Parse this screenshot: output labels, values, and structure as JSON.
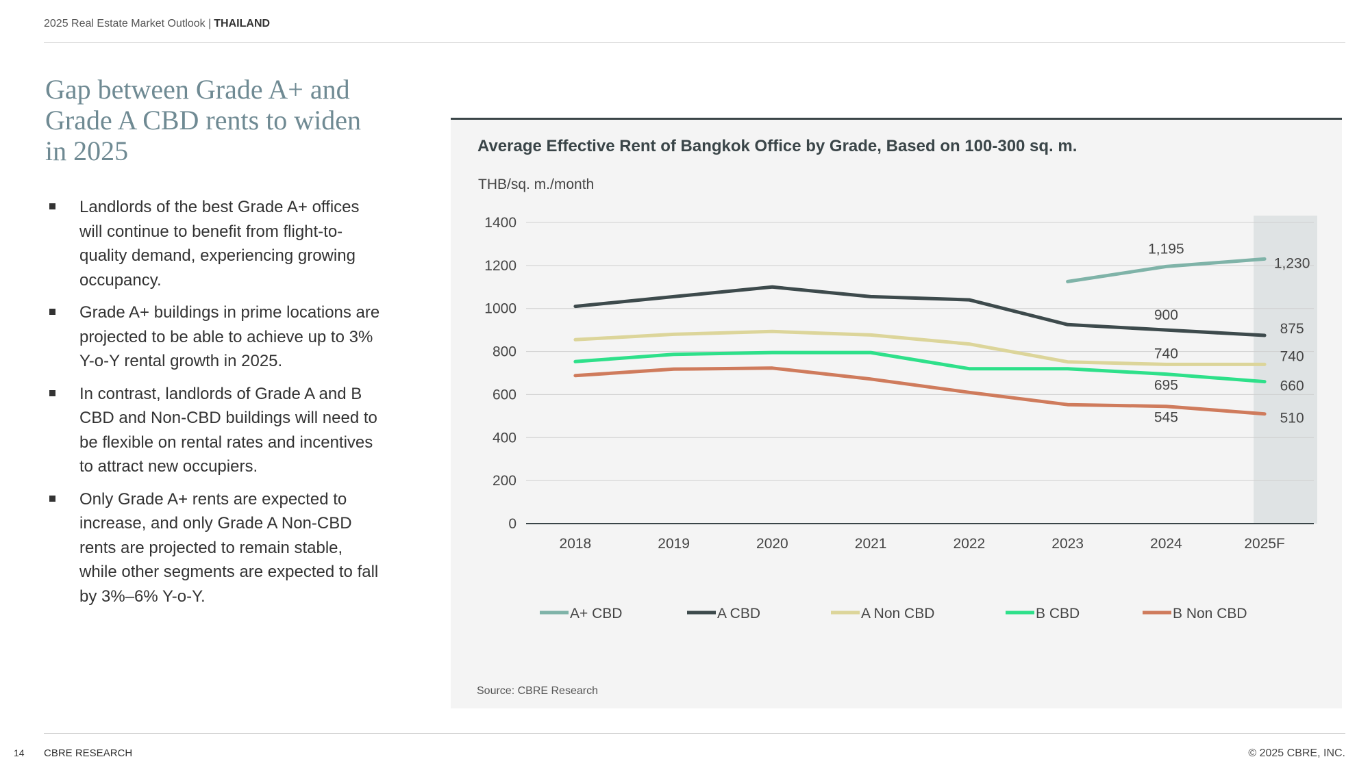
{
  "header": {
    "report": "2025 Real Estate Market Outlook |",
    "country": "THAILAND"
  },
  "title": "Gap between Grade A+ and Grade A CBD rents to widen in 2025",
  "bullets": [
    "Landlords of the best Grade A+ offices will continue to benefit from flight-to-quality demand, experiencing growing occupancy.",
    "Grade A+ buildings in prime locations are projected to be able to achieve up to 3% Y-o-Y rental growth in 2025.",
    "In contrast, landlords of Grade A and B CBD and Non-CBD buildings will need to be flexible on rental rates and incentives to attract new occupiers.",
    "Only Grade A+ rents are expected to increase, and only Grade A Non-CBD rents are projected to remain stable, while other segments are expected to fall by 3%–6% Y-o-Y."
  ],
  "chart_data": {
    "type": "line",
    "title": "Average Effective Rent of Bangkok Office by Grade, Based on 100-300 sq. m.",
    "ylabel": "THB/sq. m./month",
    "categories": [
      "2018",
      "2019",
      "2020",
      "2021",
      "2022",
      "2023",
      "2024",
      "2025F"
    ],
    "ylim": [
      0,
      1400
    ],
    "yticks": [
      0,
      200,
      400,
      600,
      800,
      1000,
      1200,
      1400
    ],
    "grid": true,
    "legend": "bottom",
    "forecast_shaded_category": "2025F",
    "series": [
      {
        "name": "A+ CBD",
        "color": "#7fb3a8",
        "values": [
          null,
          null,
          null,
          null,
          null,
          1125,
          1195,
          1230
        ],
        "labels": [
          null,
          null,
          null,
          null,
          null,
          null,
          "1,195",
          "1,230"
        ]
      },
      {
        "name": "A CBD",
        "color": "#3d4a4c",
        "values": [
          1010,
          1055,
          1100,
          1055,
          1040,
          925,
          900,
          875
        ],
        "labels": [
          null,
          null,
          null,
          null,
          null,
          null,
          "900",
          "875"
        ]
      },
      {
        "name": "A Non CBD",
        "color": "#dcd59a",
        "values": [
          855,
          880,
          893,
          877,
          835,
          752,
          740,
          740
        ],
        "labels": [
          null,
          null,
          null,
          null,
          null,
          null,
          "740",
          "740"
        ]
      },
      {
        "name": "B CBD",
        "color": "#2ee08a",
        "values": [
          753,
          787,
          795,
          795,
          720,
          720,
          695,
          660
        ],
        "labels": [
          null,
          null,
          null,
          null,
          null,
          null,
          "695",
          "660"
        ]
      },
      {
        "name": "B Non CBD",
        "color": "#cf7b5c",
        "values": [
          688,
          718,
          723,
          672,
          610,
          553,
          545,
          510
        ],
        "labels": [
          null,
          null,
          null,
          null,
          null,
          null,
          "545",
          "510"
        ]
      }
    ]
  },
  "source": "Source: CBRE Research",
  "footer": {
    "page": "14",
    "label": "CBRE RESEARCH",
    "copyright": "© 2025 CBRE, INC."
  }
}
